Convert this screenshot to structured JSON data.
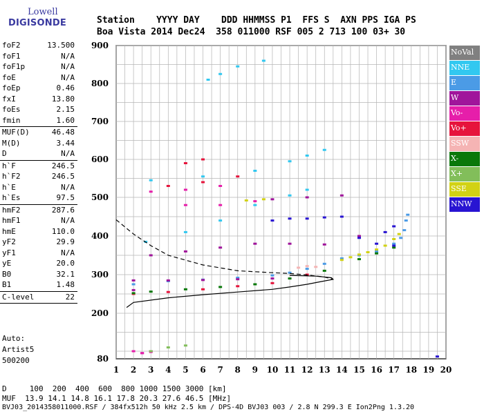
{
  "logo": {
    "line1": "Lowell",
    "line2": "DIGISONDE"
  },
  "header": {
    "line1": "Station    YYYY DAY    DDD HHMMSS P1  FFS S  AXN PPS IGA PS",
    "line2": "Boa Vista 2014 Dec24  358 011000 RSF 005 2 713 100 03+ 30"
  },
  "params": [
    {
      "name": "foF2",
      "value": "13.500"
    },
    {
      "name": "foF1",
      "value": "N/A"
    },
    {
      "name": "foF1p",
      "value": "N/A"
    },
    {
      "name": "foE",
      "value": "N/A"
    },
    {
      "name": "foEp",
      "value": "0.46"
    },
    {
      "name": "fxI",
      "value": "13.80"
    },
    {
      "name": "foEs",
      "value": "2.15"
    },
    {
      "name": "fmin",
      "value": "1.60"
    },
    {
      "sep": true
    },
    {
      "name": "MUF(D)",
      "value": "46.48"
    },
    {
      "name": "M(D)",
      "value": "3.44"
    },
    {
      "name": "D",
      "value": "N/A"
    },
    {
      "sep": true
    },
    {
      "name": "h`F",
      "value": "246.5"
    },
    {
      "name": "h`F2",
      "value": "246.5"
    },
    {
      "name": "h`E",
      "value": "N/A"
    },
    {
      "name": "h`Es",
      "value": "97.5"
    },
    {
      "sep": true
    },
    {
      "name": "hmF2",
      "value": "287.6"
    },
    {
      "name": "hmF1",
      "value": "N/A"
    },
    {
      "name": "hmE",
      "value": "110.0"
    },
    {
      "name": "yF2",
      "value": "29.9"
    },
    {
      "name": "yF1",
      "value": "N/A"
    },
    {
      "name": "yE",
      "value": "20.0"
    },
    {
      "name": "B0",
      "value": "32.1"
    },
    {
      "name": "B1",
      "value": "1.48"
    },
    {
      "sep": true
    },
    {
      "name": "C-level",
      "value": "22"
    },
    {
      "sep": true
    }
  ],
  "auto": {
    "line1": "Auto:",
    "line2": "Artist5",
    "line3": "500200"
  },
  "footer": {
    "line1": "D     100  200  400  600  800 1000 1500 3000 [km]",
    "line2": "MUF  13.9 14.1 14.8 16.1 17.8 20.3 27.6 46.5 [MHz]",
    "line3": "BVJ03_2014358011000.RSF / 384fx512h 50 kHz 2.5 km / DPS-4D BVJ03 003 / 2.8 N 299.3 E Ion2Png 1.3.20"
  },
  "legend": [
    {
      "label": "NoVal",
      "color": "#808080"
    },
    {
      "label": "NNE",
      "color": "#32c8f0"
    },
    {
      "label": "E",
      "color": "#4b9be6"
    },
    {
      "label": "W",
      "color": "#a0159b"
    },
    {
      "label": "Vo-",
      "color": "#e61eaa"
    },
    {
      "label": "Vo+",
      "color": "#e6143c"
    },
    {
      "label": "SSW",
      "color": "#f5b4b4"
    },
    {
      "label": "X-",
      "color": "#0a780a"
    },
    {
      "label": "X+",
      "color": "#82be5a"
    },
    {
      "label": "SSE",
      "color": "#d2d214"
    },
    {
      "label": "NNW",
      "color": "#2814d2"
    }
  ],
  "chart_data": {
    "type": "scatter",
    "title": "",
    "xlabel": "",
    "ylabel": "",
    "xlim": [
      1,
      20
    ],
    "ylim": [
      80,
      900
    ],
    "grid": true,
    "x_ticks": [
      "1",
      "2",
      "3",
      "4",
      "5",
      "6",
      "7",
      "8",
      "9",
      "10",
      "11",
      "12",
      "13",
      "14",
      "15",
      "16",
      "17",
      "18",
      "19",
      "20"
    ],
    "y_ticks": [
      "80",
      "200",
      "300",
      "400",
      "500",
      "600",
      "700",
      "800",
      "900"
    ],
    "legend_position": "right",
    "series": [
      {
        "name": "E",
        "color": "#4b9be6",
        "points": [
          [
            2.0,
            275
          ],
          [
            4,
            283
          ],
          [
            6,
            287
          ],
          [
            8,
            292
          ],
          [
            10,
            298
          ],
          [
            11,
            305
          ],
          [
            12,
            315
          ],
          [
            13,
            328
          ],
          [
            14,
            342
          ],
          [
            15,
            350
          ],
          [
            16,
            360
          ],
          [
            17,
            380
          ],
          [
            17.4,
            395
          ],
          [
            17.6,
            415
          ],
          [
            17.7,
            440
          ],
          [
            17.8,
            455
          ]
        ]
      },
      {
        "name": "NNE",
        "color": "#32c8f0",
        "points": [
          [
            2.7,
            385
          ],
          [
            5,
            410
          ],
          [
            7,
            440
          ],
          [
            9,
            480
          ],
          [
            11,
            505
          ],
          [
            12,
            520
          ],
          [
            3,
            545
          ],
          [
            6,
            555
          ],
          [
            9,
            570
          ],
          [
            11,
            595
          ],
          [
            12,
            610
          ],
          [
            13,
            625
          ],
          [
            8,
            845
          ],
          [
            9.5,
            860
          ],
          [
            6.3,
            810
          ],
          [
            7,
            825
          ]
        ]
      },
      {
        "name": "W",
        "color": "#a0159b",
        "points": [
          [
            2,
            285
          ],
          [
            4,
            285
          ],
          [
            6,
            286
          ],
          [
            8,
            288
          ],
          [
            10,
            290
          ],
          [
            3,
            350
          ],
          [
            5,
            360
          ],
          [
            7,
            370
          ],
          [
            9,
            380
          ],
          [
            11,
            380
          ],
          [
            13,
            378
          ],
          [
            15,
            400
          ],
          [
            10,
            495
          ],
          [
            12,
            500
          ],
          [
            14,
            505
          ],
          [
            2,
            260
          ],
          [
            2.5,
            95
          ],
          [
            3,
            100
          ]
        ]
      },
      {
        "name": "Vo-",
        "color": "#e61eaa",
        "points": [
          [
            2.5,
            95
          ],
          [
            3,
            98
          ],
          [
            2,
            100
          ],
          [
            5,
            480
          ],
          [
            7,
            480
          ],
          [
            9,
            490
          ],
          [
            3,
            515
          ],
          [
            5,
            520
          ],
          [
            7,
            530
          ]
        ]
      },
      {
        "name": "Vo+",
        "color": "#e6143c",
        "points": [
          [
            2,
            250
          ],
          [
            4,
            255
          ],
          [
            6,
            262
          ],
          [
            8,
            270
          ],
          [
            10,
            278
          ],
          [
            12,
            300
          ],
          [
            4,
            530
          ],
          [
            6,
            540
          ],
          [
            8,
            555
          ],
          [
            5,
            590
          ],
          [
            6,
            600
          ]
        ]
      },
      {
        "name": "SSW",
        "color": "#f5b4b4",
        "points": [
          [
            11.5,
            318
          ],
          [
            12,
            322
          ],
          [
            12.5,
            320
          ]
        ]
      },
      {
        "name": "X-",
        "color": "#0a780a",
        "points": [
          [
            2,
            252
          ],
          [
            3,
            256
          ],
          [
            5,
            262
          ],
          [
            7,
            268
          ],
          [
            9,
            275
          ],
          [
            11,
            290
          ],
          [
            13,
            310
          ],
          [
            15,
            340
          ],
          [
            16,
            355
          ],
          [
            17,
            370
          ]
        ]
      },
      {
        "name": "X+",
        "color": "#82be5a",
        "points": [
          [
            3,
            100
          ],
          [
            4,
            110
          ],
          [
            5,
            115
          ]
        ]
      },
      {
        "name": "SSE",
        "color": "#d2d214",
        "points": [
          [
            14,
            338
          ],
          [
            14.5,
            345
          ],
          [
            15,
            352
          ],
          [
            15.5,
            358
          ],
          [
            16,
            365
          ],
          [
            16.5,
            375
          ],
          [
            17,
            392
          ],
          [
            17.3,
            405
          ],
          [
            8.5,
            492
          ],
          [
            9.5,
            495
          ]
        ]
      },
      {
        "name": "NNW",
        "color": "#2814d2",
        "points": [
          [
            10,
            440
          ],
          [
            11,
            445
          ],
          [
            12,
            445
          ],
          [
            13,
            448
          ],
          [
            14,
            450
          ],
          [
            15,
            395
          ],
          [
            16,
            380
          ],
          [
            17,
            375
          ],
          [
            16.5,
            410
          ],
          [
            17,
            425
          ],
          [
            19.5,
            86
          ]
        ]
      }
    ],
    "profile_solid": {
      "points": [
        [
          1.6,
          215
        ],
        [
          2,
          228
        ],
        [
          4,
          240
        ],
        [
          6,
          248
        ],
        [
          8,
          255
        ],
        [
          10,
          262
        ],
        [
          11,
          268
        ],
        [
          12,
          275
        ],
        [
          12.8,
          282
        ],
        [
          13.5,
          287.6
        ],
        [
          13.4,
          292
        ],
        [
          12.5,
          296
        ],
        [
          11,
          298
        ]
      ]
    },
    "profile_dashed": {
      "points": [
        [
          1.0,
          442
        ],
        [
          2,
          405
        ],
        [
          3,
          375
        ],
        [
          4,
          350
        ],
        [
          6,
          325
        ],
        [
          8,
          310
        ],
        [
          10,
          305
        ],
        [
          11,
          303
        ],
        [
          12,
          299
        ],
        [
          13,
          294
        ],
        [
          13.5,
          287.6
        ]
      ]
    }
  }
}
